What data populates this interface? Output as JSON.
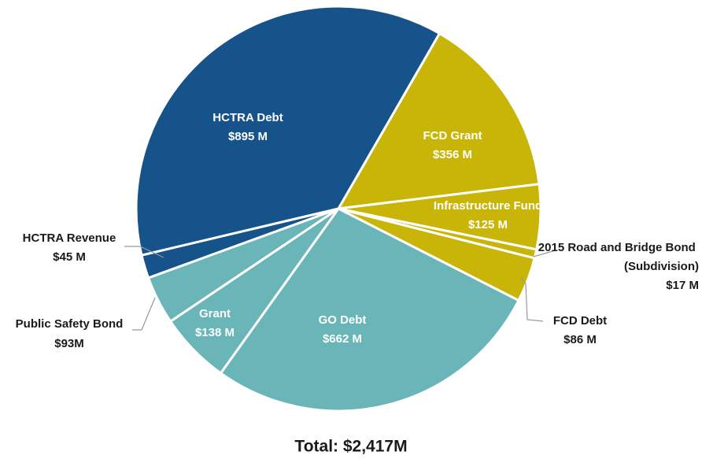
{
  "chart_data": {
    "type": "pie",
    "annotation": "Total: $2,417M",
    "categories": [
      "FCD Grant",
      "Infrastructure Fund",
      "2015 Road and Bridge Bond (Subdivision)",
      "FCD Debt",
      "GO Debt",
      "Grant",
      "Public Safety Bond",
      "HCTRA Revenue",
      "HCTRA Debt"
    ],
    "values": [
      356,
      125,
      17,
      86,
      662,
      138,
      93,
      45,
      895
    ],
    "value_labels": [
      "$356 M",
      "$125 M",
      "$17 M",
      "$86 M",
      "$662 M",
      "$138 M",
      "$93M",
      "$45 M",
      "$895 M"
    ],
    "colors": [
      "#c9b508",
      "#c9b508",
      "#c9b508",
      "#c9b508",
      "#69b5b8",
      "#69b5b8",
      "#69b5b8",
      "#16538a",
      "#16538a"
    ]
  }
}
